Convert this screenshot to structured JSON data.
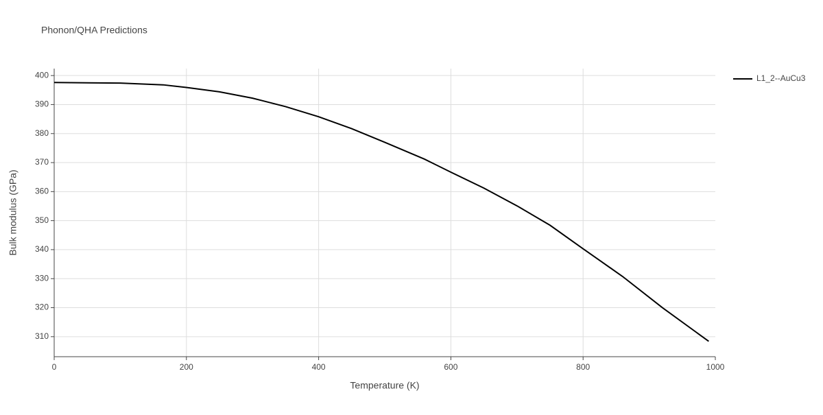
{
  "chart_data": {
    "type": "line",
    "title": "Phonon/QHA Predictions",
    "x_label": "Temperature (K)",
    "y_label": "Bulk modulus (GPa)",
    "x": [
      0,
      100,
      165,
      200,
      250,
      300,
      350,
      400,
      450,
      500,
      560,
      600,
      650,
      700,
      750,
      800,
      860,
      920,
      990
    ],
    "series": [
      {
        "name": "L1_2--AuCu3",
        "color": "#000000",
        "values": [
          397.6,
          397.4,
          396.8,
          395.9,
          394.4,
          392.2,
          389.3,
          385.8,
          381.7,
          377.0,
          371.2,
          366.7,
          361.2,
          355.1,
          348.4,
          340.3,
          330.7,
          320.0,
          308.4
        ]
      }
    ],
    "xlim": [
      0,
      1000
    ],
    "xticks": [
      0,
      200,
      400,
      600,
      800,
      1000
    ],
    "ylim": [
      303.1,
      402.4
    ],
    "yticks": [
      310,
      320,
      330,
      340,
      350,
      360,
      370,
      380,
      390,
      400
    ],
    "grid": true,
    "legend": "top-right"
  }
}
